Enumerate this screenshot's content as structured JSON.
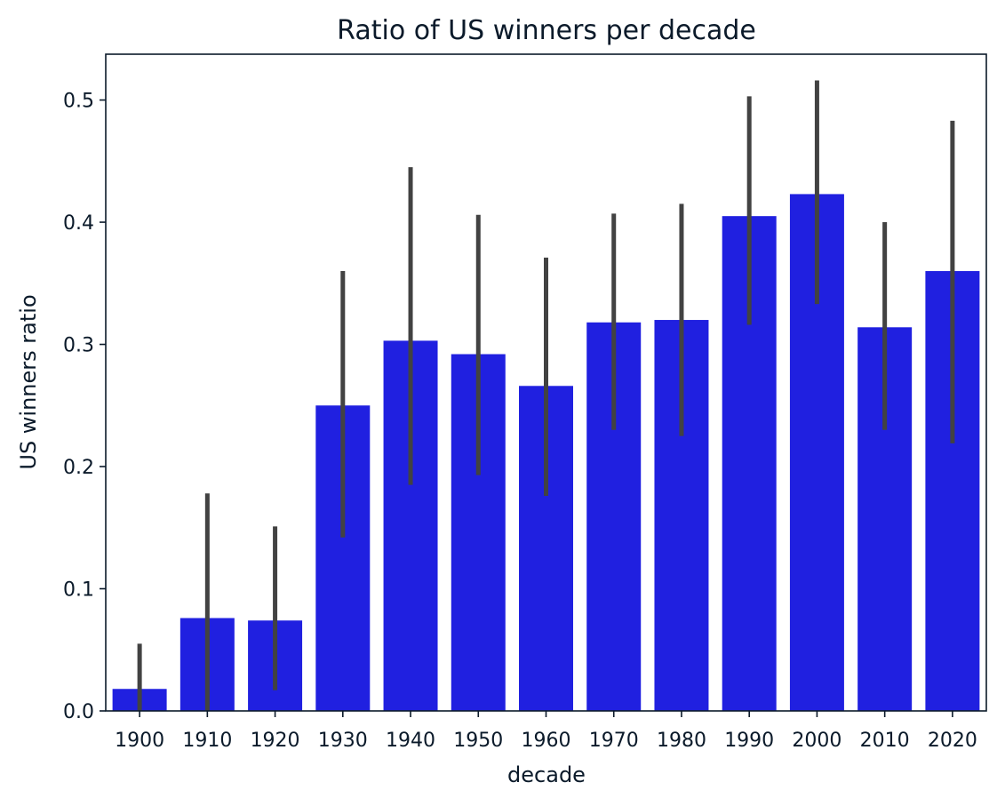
{
  "chart_data": {
    "type": "bar",
    "title": "Ratio of US winners per decade",
    "xlabel": "decade",
    "ylabel": "US winners ratio",
    "categories": [
      "1900",
      "1910",
      "1920",
      "1930",
      "1940",
      "1950",
      "1960",
      "1970",
      "1980",
      "1990",
      "2000",
      "2010",
      "2020"
    ],
    "values": [
      0.018,
      0.076,
      0.074,
      0.25,
      0.303,
      0.292,
      0.266,
      0.318,
      0.32,
      0.405,
      0.423,
      0.314,
      0.36
    ],
    "error_low": [
      0.0,
      0.0,
      0.017,
      0.142,
      0.185,
      0.193,
      0.176,
      0.23,
      0.225,
      0.316,
      0.333,
      0.23,
      0.219
    ],
    "error_high": [
      0.055,
      0.178,
      0.151,
      0.36,
      0.445,
      0.406,
      0.371,
      0.407,
      0.415,
      0.503,
      0.516,
      0.4,
      0.483
    ],
    "ylim": [
      0.0,
      0.5375
    ],
    "yticks": [
      0.0,
      0.1,
      0.2,
      0.3,
      0.4,
      0.5
    ],
    "ytick_labels": [
      "0.0",
      "0.1",
      "0.2",
      "0.3",
      "0.4",
      "0.5"
    ],
    "grid": false,
    "bar_color": "#2020e0",
    "error_color": "#424242"
  }
}
